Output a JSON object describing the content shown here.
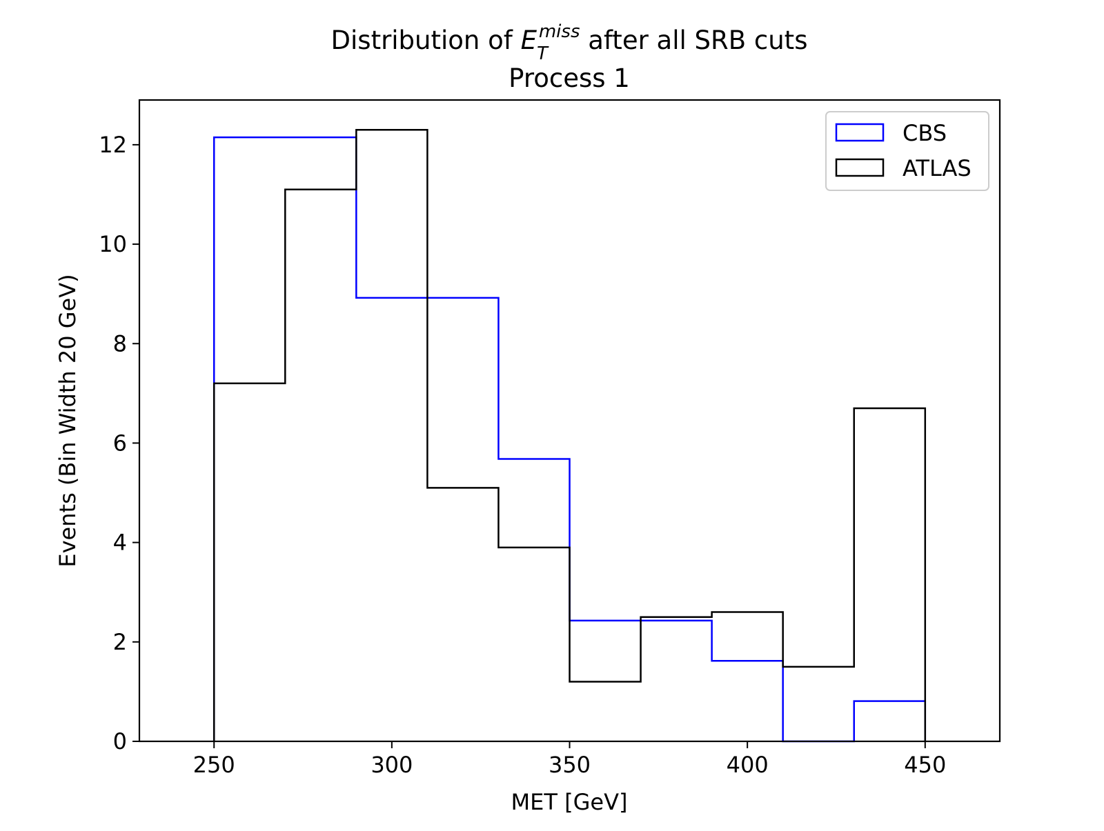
{
  "chart_data": {
    "type": "histogram-step",
    "title": {
      "prefix": "Distribution of ",
      "symbol_base": "E",
      "symbol_sub": "T",
      "symbol_sup": "miss",
      "suffix": " after all SRB cuts",
      "line2": "Process 1"
    },
    "xlabel": "MET [GeV]",
    "ylabel": "Events (Bin Width 20 GeV)",
    "xlim": [
      229,
      471
    ],
    "ylim": [
      0,
      12.9
    ],
    "xticks": [
      250,
      300,
      350,
      400,
      450
    ],
    "yticks": [
      0,
      2,
      4,
      6,
      8,
      10,
      12
    ],
    "bin_edges": [
      250,
      270,
      290,
      310,
      330,
      350,
      370,
      390,
      410,
      430,
      450
    ],
    "series": [
      {
        "name": "CBS",
        "color": "#0000ff",
        "values": [
          12.15,
          12.15,
          8.92,
          8.92,
          5.68,
          2.43,
          2.43,
          1.62,
          0,
          0.81
        ]
      },
      {
        "name": "ATLAS",
        "color": "#000000",
        "values": [
          7.2,
          11.1,
          12.3,
          5.1,
          3.9,
          1.2,
          2.5,
          2.6,
          1.5,
          6.7
        ]
      }
    ],
    "legend": {
      "position": "top-right",
      "order": [
        "CBS",
        "ATLAS"
      ]
    },
    "grid": false
  }
}
